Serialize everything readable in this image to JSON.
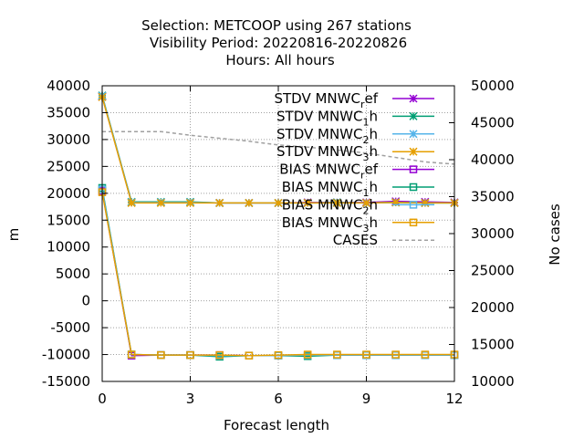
{
  "chart_data": {
    "type": "line",
    "title_lines": [
      "Selection: METCOOP using   267 stations",
      "Visibility   Period: 20220816-20220826",
      "Hours:  All hours"
    ],
    "xlabel": "Forecast length",
    "ylabel": "m",
    "y2label": "No cases",
    "xlim": [
      0,
      12
    ],
    "ylim": [
      -15000,
      40000
    ],
    "y2lim": [
      10000,
      50000
    ],
    "xticks": [
      0,
      3,
      6,
      9,
      12
    ],
    "yticks": [
      -15000,
      -10000,
      -5000,
      0,
      5000,
      10000,
      15000,
      20000,
      25000,
      30000,
      35000,
      40000
    ],
    "y2ticks": [
      10000,
      15000,
      20000,
      25000,
      30000,
      35000,
      40000,
      45000,
      50000
    ],
    "grid": true,
    "legend_position": "top-right",
    "x": [
      0,
      1,
      2,
      3,
      4,
      5,
      6,
      7,
      8,
      9,
      10,
      11,
      12
    ],
    "series": [
      {
        "name": "STDV MNWC_ref",
        "label_main": "STDV MNWC",
        "label_sub": "r",
        "label_tail": "ef",
        "color": "#9400d3",
        "marker": "star",
        "axis": "y1",
        "values": [
          38000,
          18300,
          18300,
          18300,
          18200,
          18200,
          18200,
          18300,
          18300,
          18300,
          18500,
          18400,
          18300
        ]
      },
      {
        "name": "STDV MNWC_1h",
        "label_main": "STDV MNWC",
        "label_sub": "1",
        "label_tail": "h",
        "color": "#009e73",
        "marker": "star",
        "axis": "y1",
        "values": [
          38200,
          18400,
          18400,
          18400,
          18200,
          18200,
          18200,
          18200,
          18300,
          18200,
          18300,
          18200,
          18200
        ]
      },
      {
        "name": "STDV MNWC_2h",
        "label_main": "STDV MNWC",
        "label_sub": "2",
        "label_tail": "h",
        "color": "#56b4e9",
        "marker": "star",
        "axis": "y1",
        "values": [
          38100,
          18300,
          18300,
          18300,
          18200,
          18200,
          18200,
          18200,
          18200,
          18200,
          18300,
          18200,
          18200
        ]
      },
      {
        "name": "STDV MNWC_3h",
        "label_main": "STDV MNWC",
        "label_sub": "3",
        "label_tail": "h",
        "color": "#e69f00",
        "marker": "star",
        "axis": "y1",
        "values": [
          37900,
          18200,
          18200,
          18200,
          18200,
          18200,
          18200,
          18200,
          18200,
          18200,
          18300,
          18200,
          18200
        ]
      },
      {
        "name": "BIAS MNWC_ref",
        "label_main": "BIAS MNWC",
        "label_sub": "r",
        "label_tail": "ef",
        "color": "#9400d3",
        "marker": "square",
        "axis": "y1",
        "values": [
          20400,
          -10200,
          -10100,
          -10100,
          -10100,
          -10200,
          -10200,
          -10100,
          -10100,
          -10100,
          -10100,
          -10100,
          -10100
        ]
      },
      {
        "name": "BIAS MNWC_1h",
        "label_main": "BIAS MNWC",
        "label_sub": "1",
        "label_tail": "h",
        "color": "#009e73",
        "marker": "square",
        "axis": "y1",
        "values": [
          21000,
          -10000,
          -10100,
          -10100,
          -10400,
          -10200,
          -10200,
          -10300,
          -10100,
          -10100,
          -10100,
          -10100,
          -10100
        ]
      },
      {
        "name": "BIAS MNWC_2h",
        "label_main": "BIAS MNWC",
        "label_sub": "2",
        "label_tail": "h",
        "color": "#56b4e9",
        "marker": "square",
        "axis": "y1",
        "values": [
          20700,
          -10000,
          -10100,
          -10100,
          -10200,
          -10200,
          -10200,
          -10100,
          -10100,
          -10100,
          -10100,
          -10100,
          -10100
        ]
      },
      {
        "name": "BIAS MNWC_3h",
        "label_main": "BIAS MNWC",
        "label_sub": "3",
        "label_tail": "h",
        "color": "#e69f00",
        "marker": "square",
        "axis": "y1",
        "values": [
          20200,
          -10000,
          -10100,
          -10100,
          -10100,
          -10200,
          -10100,
          -10000,
          -10000,
          -10000,
          -10000,
          -10000,
          -10000
        ]
      },
      {
        "name": "CASES",
        "label_main": "CASES",
        "label_sub": "",
        "label_tail": "",
        "color": "#a0a0a0",
        "marker": "none",
        "dashed": true,
        "axis": "y2",
        "values": [
          43800,
          43800,
          43800,
          43300,
          42900,
          42500,
          42000,
          41700,
          41300,
          40900,
          40300,
          39700,
          39400
        ]
      }
    ]
  }
}
